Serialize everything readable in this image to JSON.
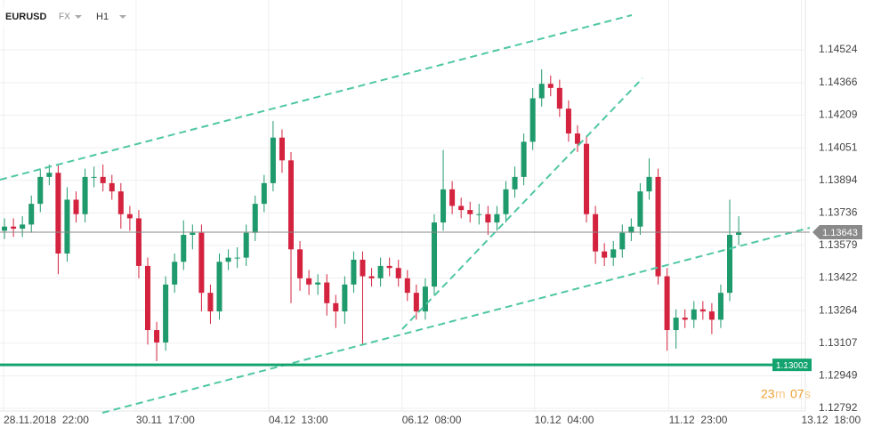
{
  "chart_data": {
    "type": "candlestick",
    "header": {
      "symbol": "EURUSD",
      "market": "FX",
      "timeframe": "H1"
    },
    "up_color": "#1f9a6c",
    "down_color": "#d4233f",
    "open": [
      1.1365,
      1.1367,
      1.1366,
      1.1368,
      1.1378,
      1.1391,
      1.1393,
      1.1354,
      1.138,
      1.1373,
      1.1391,
      1.1391,
      1.1388,
      1.1384,
      1.1373,
      1.1371,
      1.1348,
      1.1317,
      1.1311,
      1.1339,
      1.135,
      1.1363,
      1.1364,
      1.1335,
      1.1326,
      1.135,
      1.1352,
      1.1352,
      1.1364,
      1.1378,
      1.1388,
      1.141,
      1.1399,
      1.1356,
      1.1342,
      1.1339,
      1.134,
      1.133,
      1.1326,
      1.1339,
      1.1351,
      1.1343,
      1.1342,
      1.1348,
      1.1347,
      1.1342,
      1.1335,
      1.1326,
      1.1338,
      1.1369,
      1.1385,
      1.1377,
      1.1375,
      1.1373,
      1.1373,
      1.1369,
      1.1373,
      1.1385,
      1.1391,
      1.1408,
      1.1429,
      1.1436,
      1.1434,
      1.1424,
      1.1412,
      1.1407,
      1.1373,
      1.1355,
      1.1352,
      1.1356,
      1.1364,
      1.1367,
      1.1384,
      1.1391,
      1.1343,
      1.1317,
      1.1323,
      1.1322,
      1.1327,
      1.1326,
      1.1322,
      1.1335,
      1.1363
    ],
    "high": [
      1.1371,
      1.1371,
      1.1372,
      1.1382,
      1.1395,
      1.1397,
      1.1397,
      1.1386,
      1.1384,
      1.1395,
      1.1396,
      1.1397,
      1.1392,
      1.1388,
      1.1377,
      1.1375,
      1.1352,
      1.1321,
      1.1343,
      1.1354,
      1.137,
      1.1368,
      1.1368,
      1.1339,
      1.1354,
      1.1356,
      1.1357,
      1.1368,
      1.1382,
      1.1392,
      1.1418,
      1.1414,
      1.1403,
      1.136,
      1.1346,
      1.1344,
      1.1344,
      1.1334,
      1.1343,
      1.1355,
      1.1355,
      1.1347,
      1.1352,
      1.1352,
      1.1351,
      1.1346,
      1.1339,
      1.1342,
      1.1373,
      1.1404,
      1.1389,
      1.1381,
      1.1379,
      1.1378,
      1.1377,
      1.1377,
      1.1389,
      1.1396,
      1.1412,
      1.1434,
      1.1443,
      1.144,
      1.1438,
      1.1428,
      1.1416,
      1.1411,
      1.1377,
      1.1359,
      1.136,
      1.1368,
      1.1371,
      1.1388,
      1.14,
      1.1395,
      1.1347,
      1.1327,
      1.1327,
      1.1331,
      1.1331,
      1.133,
      1.1339,
      1.138,
      1.1372
    ],
    "low": [
      1.1361,
      1.1362,
      1.1362,
      1.1364,
      1.1374,
      1.1387,
      1.1344,
      1.135,
      1.1369,
      1.1369,
      1.1386,
      1.1384,
      1.138,
      1.1366,
      1.1365,
      1.1342,
      1.131,
      1.1302,
      1.1307,
      1.1335,
      1.1346,
      1.1356,
      1.1326,
      1.132,
      1.1322,
      1.1346,
      1.1347,
      1.1348,
      1.136,
      1.1374,
      1.1384,
      1.1393,
      1.133,
      1.1336,
      1.1334,
      1.1334,
      1.1324,
      1.1318,
      1.132,
      1.1335,
      1.131,
      1.1338,
      1.1338,
      1.1343,
      1.1338,
      1.1331,
      1.1322,
      1.1322,
      1.1334,
      1.1365,
      1.1373,
      1.1371,
      1.1369,
      1.1368,
      1.1363,
      1.1365,
      1.1369,
      1.1381,
      1.1387,
      1.1404,
      1.1425,
      1.143,
      1.142,
      1.1408,
      1.1403,
      1.1369,
      1.1349,
      1.1348,
      1.1348,
      1.1352,
      1.136,
      1.1363,
      1.138,
      1.1339,
      1.1307,
      1.1308,
      1.1318,
      1.1318,
      1.1322,
      1.1315,
      1.1318,
      1.1331,
      1.1358
    ],
    "close": [
      1.1367,
      1.1366,
      1.1368,
      1.1378,
      1.1391,
      1.1393,
      1.1354,
      1.138,
      1.1373,
      1.1391,
      1.1391,
      1.1388,
      1.1384,
      1.1373,
      1.1371,
      1.1348,
      1.1317,
      1.1311,
      1.1339,
      1.135,
      1.1363,
      1.1364,
      1.1335,
      1.1326,
      1.135,
      1.1352,
      1.1352,
      1.1364,
      1.1378,
      1.1388,
      1.141,
      1.1399,
      1.1356,
      1.1342,
      1.1339,
      1.134,
      1.133,
      1.1326,
      1.1339,
      1.1351,
      1.1343,
      1.1342,
      1.1348,
      1.1347,
      1.1342,
      1.1335,
      1.1326,
      1.1338,
      1.1369,
      1.1385,
      1.1377,
      1.1375,
      1.1373,
      1.1373,
      1.1369,
      1.1373,
      1.1385,
      1.1391,
      1.1408,
      1.1429,
      1.1436,
      1.1434,
      1.1424,
      1.1412,
      1.1407,
      1.1373,
      1.1355,
      1.1352,
      1.1356,
      1.1364,
      1.1367,
      1.1384,
      1.1391,
      1.1343,
      1.1317,
      1.1323,
      1.1322,
      1.1327,
      1.1326,
      1.1322,
      1.1335,
      1.1363,
      1.13643
    ],
    "xlim": [
      0,
      97.5
    ],
    "xticks": [
      {
        "value": 0.4,
        "label": "28.11.2018  22:00"
      },
      {
        "value": 15.2,
        "label": "30.11  17:00"
      },
      {
        "value": 30.0,
        "label": "04.12  13:00"
      },
      {
        "value": 44.9,
        "label": "06.12  08:00"
      },
      {
        "value": 59.7,
        "label": "10.12  04:00"
      },
      {
        "value": 74.7,
        "label": "11.12  23:00"
      },
      {
        "value": 89.5,
        "label": "13.12  18:00"
      }
    ],
    "ylim": [
      1.12779,
      1.14722
    ],
    "yticks": [
      1.12792,
      1.12949,
      1.13107,
      1.13264,
      1.13422,
      1.13579,
      1.13736,
      1.13894,
      1.14051,
      1.14209,
      1.14366,
      1.14524
    ],
    "grid": true,
    "price_lines": [
      {
        "value": 1.13643,
        "color": "#8a8a8a"
      },
      {
        "value": 1.13002,
        "color": "#13a36e"
      }
    ],
    "countdown": {
      "minutes": "23",
      "minutes_unit": "m",
      "seconds": "07",
      "seconds_unit": "s"
    }
  }
}
